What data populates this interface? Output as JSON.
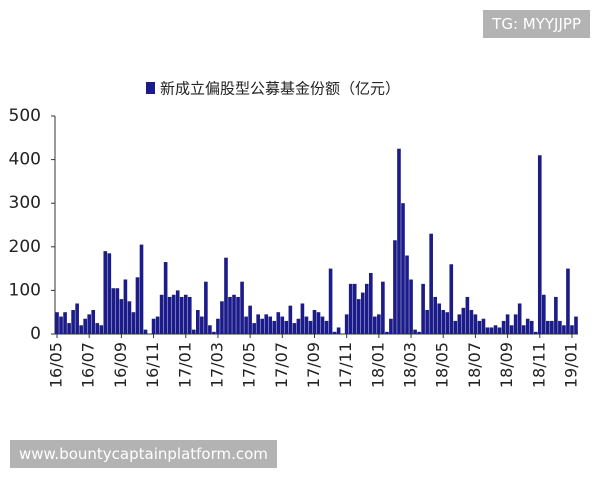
{
  "chart_data": {
    "type": "bar",
    "categories": [
      "16/05",
      null,
      null,
      null,
      null,
      null,
      null,
      null,
      "16/07",
      null,
      null,
      null,
      null,
      null,
      null,
      null,
      "16/09",
      null,
      null,
      null,
      null,
      null,
      null,
      null,
      "16/11",
      null,
      null,
      null,
      null,
      null,
      null,
      null,
      "17/01",
      null,
      null,
      null,
      null,
      null,
      null,
      null,
      "17/03",
      null,
      null,
      null,
      null,
      null,
      null,
      null,
      "17/05",
      null,
      null,
      null,
      null,
      null,
      null,
      null,
      "17/07",
      null,
      null,
      null,
      null,
      null,
      null,
      null,
      "17/09",
      null,
      null,
      null,
      null,
      null,
      null,
      null,
      "17/11",
      null,
      null,
      null,
      null,
      null,
      null,
      null,
      "18/01",
      null,
      null,
      null,
      null,
      null,
      null,
      null,
      "18/03",
      null,
      null,
      null,
      null,
      null,
      null,
      null,
      "18/05",
      null,
      null,
      null,
      null,
      null,
      null,
      null,
      "18/07",
      null,
      null,
      null,
      null,
      null,
      null,
      null,
      "18/09",
      null,
      null,
      null,
      null,
      null,
      null,
      null,
      "18/11",
      null,
      null,
      null,
      null,
      null,
      null,
      null,
      "19/01",
      null
    ],
    "series": [
      {
        "name": "新成立偏股型公募基金份额（亿元）",
        "color": "#1b1b8a",
        "values": [
          50,
          40,
          50,
          25,
          55,
          70,
          20,
          35,
          45,
          55,
          25,
          20,
          190,
          185,
          105,
          105,
          80,
          125,
          75,
          50,
          130,
          205,
          10,
          0,
          35,
          40,
          90,
          165,
          85,
          90,
          100,
          85,
          90,
          85,
          10,
          55,
          40,
          120,
          20,
          5,
          35,
          75,
          175,
          85,
          90,
          85,
          120,
          40,
          65,
          25,
          45,
          35,
          45,
          40,
          30,
          50,
          40,
          30,
          65,
          25,
          35,
          70,
          40,
          30,
          55,
          50,
          40,
          30,
          150,
          5,
          15,
          0,
          45,
          115,
          115,
          80,
          95,
          115,
          140,
          40,
          45,
          120,
          5,
          35,
          215,
          425,
          300,
          180,
          125,
          10,
          5,
          115,
          55,
          230,
          85,
          70,
          55,
          50,
          160,
          30,
          45,
          60,
          85,
          55,
          45,
          30,
          35,
          15,
          15,
          20,
          15,
          30,
          45,
          20,
          45,
          70,
          20,
          35,
          30,
          5,
          410,
          90,
          30,
          30,
          85,
          30,
          20,
          150,
          20,
          40
        ]
      }
    ],
    "ylim": [
      0,
      500
    ],
    "yticks": [
      0,
      100,
      200,
      300,
      400,
      500
    ],
    "grid": false,
    "legend": "top"
  },
  "watermarks": [
    "TG: MYYJJPP",
    "www.bountycaptainplatform.com"
  ]
}
